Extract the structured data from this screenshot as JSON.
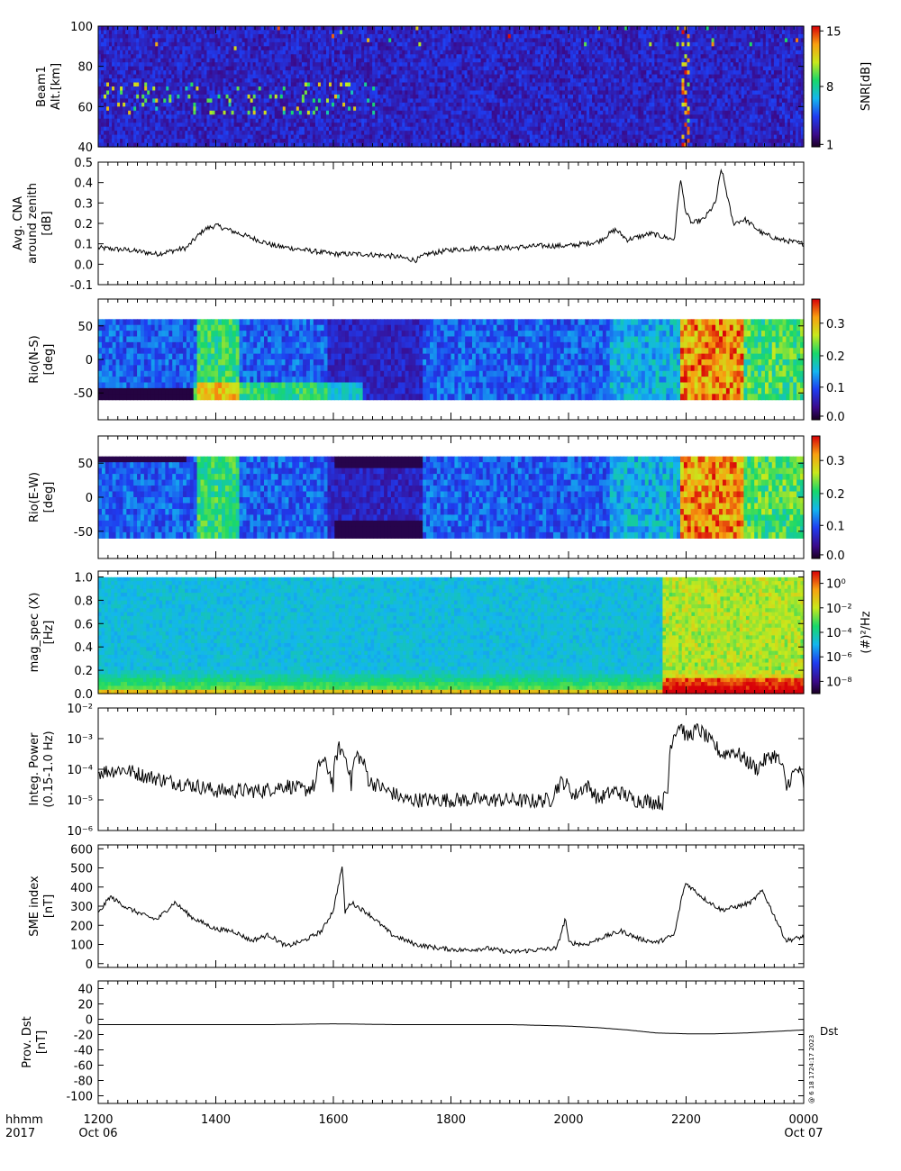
{
  "time_axis": {
    "corner_label": [
      "hhmm",
      "2017"
    ],
    "tick_labels": [
      "1200",
      "1400",
      "1600",
      "1800",
      "2000",
      "2200",
      "0000"
    ],
    "date_labels": [
      "Oct 06",
      "",
      "",
      "",
      "",
      "",
      "Oct 07"
    ]
  },
  "chart_data": [
    {
      "type": "heatmap",
      "ylabel_lines": [
        "Beam1",
        "Alt.[km]"
      ],
      "ylim": [
        40,
        100
      ],
      "yticks": [
        "100",
        "80",
        "60",
        "40"
      ],
      "colorbar": {
        "label": "SNR[dB]",
        "ticks": [
          "15",
          "8",
          "1"
        ],
        "range": [
          1,
          15
        ]
      }
    },
    {
      "type": "line",
      "ylabel_lines": [
        "Avg. CNA",
        "around zenith",
        "[dB]"
      ],
      "ylim": [
        -0.1,
        0.5
      ],
      "yticks": [
        "0.5",
        "0.4",
        "0.3",
        "0.2",
        "0.1",
        "0.0",
        "-0.1"
      ],
      "x": [
        12.0,
        12.5,
        13.0,
        13.5,
        13.8,
        14.0,
        14.3,
        14.7,
        15.0,
        15.5,
        16.0,
        16.5,
        17.0,
        17.4,
        17.6,
        18.0,
        18.5,
        19.0,
        19.5,
        20.0,
        20.5,
        20.8,
        21.0,
        21.4,
        21.8,
        21.9,
        22.0,
        22.1,
        22.3,
        22.5,
        22.6,
        22.8,
        23.0,
        23.3,
        23.6,
        24.0
      ],
      "y": [
        0.08,
        0.07,
        0.05,
        0.08,
        0.17,
        0.19,
        0.16,
        0.12,
        0.09,
        0.07,
        0.05,
        0.05,
        0.04,
        0.02,
        0.05,
        0.07,
        0.08,
        0.08,
        0.09,
        0.09,
        0.11,
        0.17,
        0.12,
        0.15,
        0.12,
        0.42,
        0.25,
        0.2,
        0.22,
        0.3,
        0.47,
        0.2,
        0.22,
        0.15,
        0.12,
        0.1
      ]
    },
    {
      "type": "heatmap",
      "ylabel_lines": [
        "Rio(N-S)",
        "[deg]"
      ],
      "ylim": [
        -90,
        90
      ],
      "yticks": [
        "50",
        "0",
        "-50"
      ],
      "colorbar": {
        "label": "",
        "ticks": [
          "0.3",
          "0.2",
          "0.1",
          "0.0"
        ],
        "range": [
          0,
          0.38
        ]
      }
    },
    {
      "type": "heatmap",
      "ylabel_lines": [
        "Rio(E-W)",
        "[deg]"
      ],
      "ylim": [
        -90,
        90
      ],
      "yticks": [
        "50",
        "0",
        "-50"
      ],
      "colorbar": {
        "label": "",
        "ticks": [
          "0.3",
          "0.2",
          "0.1",
          "0.0"
        ],
        "range": [
          0,
          0.38
        ]
      }
    },
    {
      "type": "heatmap",
      "ylabel_lines": [
        "mag_spec (X)",
        "[Hz]"
      ],
      "ylim": [
        0,
        1.05
      ],
      "yticks": [
        "1.0",
        "0.8",
        "0.6",
        "0.4",
        "0.2",
        "0.0"
      ],
      "colorbar": {
        "label": "(#)²/Hz",
        "ticks": [
          "10⁰",
          "10⁻²",
          "10⁻⁴",
          "10⁻⁶",
          "10⁻⁸"
        ],
        "range": [
          -9,
          1
        ]
      }
    },
    {
      "type": "line",
      "ylabel_lines": [
        "Integ. Power",
        "(0.15-1.0 Hz)"
      ],
      "scale": "log",
      "ylim": [
        1e-06,
        0.01
      ],
      "yticks": [
        "10⁻²",
        "10⁻³",
        "10⁻⁴",
        "10⁻⁵",
        "10⁻⁶"
      ],
      "x": [
        12.0,
        12.4,
        12.8,
        13.2,
        13.6,
        14.0,
        14.4,
        14.8,
        15.2,
        15.5,
        15.7,
        15.8,
        16.0,
        16.1,
        16.3,
        16.4,
        16.6,
        16.9,
        17.2,
        17.5,
        17.8,
        18.1,
        18.5,
        18.9,
        19.3,
        19.7,
        19.9,
        20.1,
        20.3,
        20.5,
        20.8,
        21.1,
        21.4,
        21.6,
        21.7,
        21.9,
        22.0,
        22.2,
        22.4,
        22.6,
        22.8,
        23.0,
        23.2,
        23.5,
        23.7,
        23.9,
        24.0
      ],
      "y": [
        8e-05,
        0.0001,
        6e-05,
        4e-05,
        3e-05,
        2e-05,
        2e-05,
        2e-05,
        3e-05,
        2e-05,
        3e-05,
        0.0002,
        2e-05,
        0.0005,
        2e-05,
        0.0003,
        4e-05,
        2e-05,
        1e-05,
        1e-05,
        1e-05,
        1e-05,
        1e-05,
        1e-05,
        9e-06,
        1e-05,
        4e-05,
        1.2e-05,
        3e-05,
        1e-05,
        2e-05,
        1e-05,
        9e-06,
        8e-06,
        2e-05,
        0.003,
        0.001,
        0.002,
        0.0008,
        0.0003,
        0.0004,
        0.0002,
        0.0001,
        0.0003,
        2e-05,
        0.0001,
        3e-05
      ]
    },
    {
      "type": "line",
      "ylabel_lines": [
        "SME index",
        "[nT]"
      ],
      "ylim": [
        -20,
        620
      ],
      "yticks": [
        "600",
        "500",
        "400",
        "300",
        "200",
        "100",
        "0"
      ],
      "x": [
        12.0,
        12.2,
        12.5,
        12.8,
        13.0,
        13.3,
        13.6,
        14.0,
        14.3,
        14.6,
        14.9,
        15.2,
        15.5,
        15.8,
        16.0,
        16.15,
        16.2,
        16.3,
        16.6,
        17.0,
        17.4,
        17.8,
        18.2,
        18.6,
        19.0,
        19.4,
        19.8,
        19.95,
        20.0,
        20.3,
        20.6,
        20.9,
        21.2,
        21.5,
        21.8,
        21.95,
        22.0,
        22.3,
        22.6,
        22.9,
        23.1,
        23.3,
        23.5,
        23.7,
        24.0
      ],
      "y": [
        260,
        350,
        290,
        250,
        230,
        320,
        240,
        180,
        170,
        120,
        150,
        90,
        120,
        170,
        280,
        510,
        270,
        320,
        260,
        150,
        100,
        80,
        70,
        80,
        60,
        70,
        80,
        240,
        110,
        100,
        140,
        170,
        130,
        110,
        150,
        380,
        420,
        340,
        280,
        300,
        320,
        380,
        250,
        120,
        140
      ]
    },
    {
      "type": "line",
      "ylabel_lines": [
        "Prov. Dst",
        "[nT]"
      ],
      "ylim": [
        -110,
        50
      ],
      "yticks": [
        "40",
        "20",
        "0",
        "-20",
        "-40",
        "-60",
        "-80",
        "-100"
      ],
      "x": [
        12.0,
        13.0,
        14.0,
        15.0,
        16.0,
        17.0,
        18.0,
        19.0,
        20.0,
        20.5,
        21.0,
        21.5,
        22.0,
        22.5,
        23.0,
        23.5,
        24.0
      ],
      "y": [
        -7,
        -7,
        -7,
        -7,
        -6,
        -7,
        -7,
        -7,
        -9,
        -11,
        -14,
        -18,
        -19,
        -19,
        -18,
        -16,
        -14
      ],
      "series_label": "Dst"
    }
  ],
  "side_note": "@ 6 18 1724:17 2023"
}
